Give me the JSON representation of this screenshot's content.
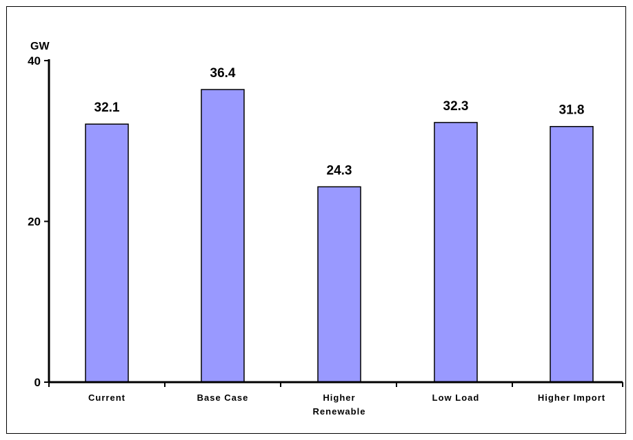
{
  "chart_data": {
    "type": "bar",
    "categories": [
      [
        "Current"
      ],
      [
        "Base Case"
      ],
      [
        "Higher",
        "Renewable"
      ],
      [
        "Low Load"
      ],
      [
        "Higher Import"
      ]
    ],
    "values": [
      32.1,
      36.4,
      24.3,
      32.3,
      31.8
    ],
    "value_labels": [
      "32.1",
      "36.4",
      "24.3",
      "32.3",
      "31.8"
    ],
    "ylabel": "GW",
    "ylim": [
      0,
      40
    ],
    "yticks": [
      0,
      20,
      40
    ],
    "grid": false,
    "legend": "none",
    "bar_color": "#9999ff",
    "edge_color": "#000000"
  }
}
